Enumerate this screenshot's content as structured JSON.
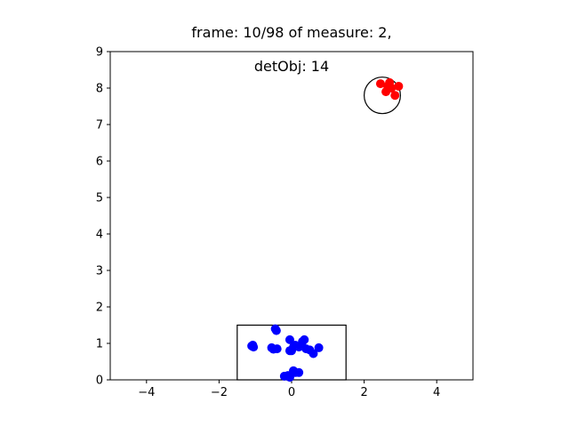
{
  "chart_data": {
    "type": "scatter",
    "title_lines": [
      "frame: 10/98 of measure: 2,",
      "detObj: 14"
    ],
    "xlabel": "",
    "ylabel": "",
    "xlim": [
      -5,
      5
    ],
    "ylim": [
      0,
      9
    ],
    "xticks": [
      -4,
      -2,
      0,
      2,
      4
    ],
    "xtick_labels": [
      "−4",
      "−2",
      "0",
      "2",
      "4"
    ],
    "yticks": [
      0,
      1,
      2,
      3,
      4,
      5,
      6,
      7,
      8,
      9
    ],
    "ytick_labels": [
      "0",
      "1",
      "2",
      "3",
      "4",
      "5",
      "6",
      "7",
      "8",
      "9"
    ],
    "grid": false,
    "series": [
      {
        "color": "#0000ff",
        "points": [
          [
            -0.45,
            1.4
          ],
          [
            -0.42,
            1.35
          ],
          [
            -1.07,
            0.95
          ],
          [
            -1.05,
            0.9
          ],
          [
            -1.1,
            0.93
          ],
          [
            -0.55,
            0.88
          ],
          [
            -0.5,
            0.84
          ],
          [
            -0.4,
            0.85
          ],
          [
            -0.05,
            1.1
          ],
          [
            -0.05,
            0.8
          ],
          [
            0.0,
            0.8
          ],
          [
            0.05,
            0.9
          ],
          [
            0.1,
            0.95
          ],
          [
            0.2,
            0.9
          ],
          [
            0.3,
            1.05
          ],
          [
            0.35,
            1.1
          ],
          [
            0.4,
            0.85
          ],
          [
            0.5,
            0.82
          ],
          [
            0.6,
            0.72
          ],
          [
            0.75,
            0.88
          ],
          [
            -0.2,
            0.1
          ],
          [
            -0.1,
            0.12
          ],
          [
            -0.05,
            0.07
          ],
          [
            0.05,
            0.25
          ],
          [
            0.1,
            0.2
          ],
          [
            0.2,
            0.2
          ]
        ]
      },
      {
        "color": "#ff0000",
        "points": [
          [
            2.45,
            8.12
          ],
          [
            2.6,
            7.9
          ],
          [
            2.65,
            8.05
          ],
          [
            2.7,
            8.15
          ],
          [
            2.75,
            8.0
          ],
          [
            2.85,
            7.8
          ],
          [
            2.95,
            8.05
          ]
        ]
      }
    ],
    "shapes": [
      {
        "kind": "rectangle",
        "x": [
          -1.5,
          1.5
        ],
        "y": [
          0,
          1.5
        ],
        "color": "#000000"
      },
      {
        "kind": "circle",
        "center": [
          2.5,
          7.8
        ],
        "radius": 0.5,
        "color": "#000000"
      }
    ]
  }
}
